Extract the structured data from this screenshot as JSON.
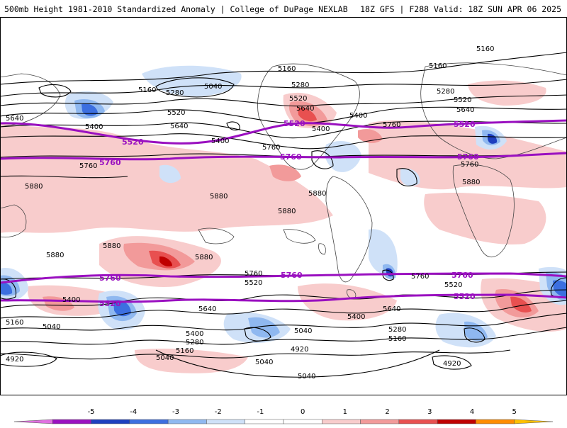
{
  "header": {
    "title_left": "500mb Height 1981-2010 Standardized Anomaly | College of DuPage NEXLAB",
    "title_right": "18Z GFS | F288 Valid: 18Z SUN APR 06 2025"
  },
  "colorbar": {
    "ticks": [
      "-5",
      "-4",
      "-3",
      "-2",
      "-1",
      "0",
      "1",
      "2",
      "3",
      "4",
      "5"
    ],
    "colors": [
      "#e070e0",
      "#9a10c0",
      "#1e3fbf",
      "#3c6fe0",
      "#8fb8f0",
      "#cfe1f8",
      "#ffffff",
      "#ffffff",
      "#f8cccc",
      "#f29a9a",
      "#e85050",
      "#c00000",
      "#ff8c00",
      "#ffc000"
    ]
  },
  "contours": {
    "black_labels": [
      "5160",
      "5160",
      "5160",
      "5160",
      "5040",
      "5280",
      "5280",
      "5280",
      "5520",
      "5520",
      "5520",
      "5640",
      "5640",
      "5640",
      "5640",
      "5400",
      "5400",
      "5400",
      "5400",
      "5760",
      "5760",
      "5760",
      "5880",
      "5880",
      "5880",
      "5880",
      "5880",
      "5880",
      "5880",
      "5880",
      "5760",
      "5760",
      "5760",
      "5640",
      "5640",
      "5520",
      "5520",
      "5400",
      "5400",
      "5400",
      "5280",
      "5280",
      "5160",
      "5160",
      "5160",
      "5040",
      "5040",
      "5040",
      "5040",
      "5040",
      "4920",
      "4920",
      "4920"
    ],
    "purple_labels": [
      "5520",
      "5520",
      "5520",
      "5760",
      "5760",
      "5760",
      "5760",
      "5760",
      "5760",
      "5520",
      "5520"
    ]
  },
  "colors": {
    "purple_contour": "#9a10c0",
    "black_contour": "#000000",
    "land_outline": "#444444",
    "pos_light": "#f8cccc",
    "pos_mid": "#f29a9a",
    "pos_strong": "#e85050",
    "pos_max": "#c00000",
    "neg_light": "#cfe1f8",
    "neg_mid": "#8fb8f0",
    "neg_strong": "#3c6fe0",
    "neg_max": "#1e3fbf"
  }
}
